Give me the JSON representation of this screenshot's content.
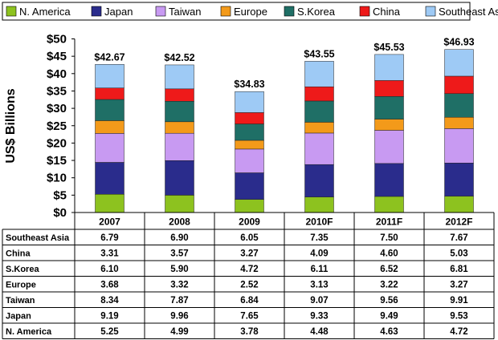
{
  "chart_data": {
    "type": "bar",
    "stacked": true,
    "ylabel": "US$ Billions",
    "ylim": [
      0,
      50
    ],
    "yticks": [
      "$0",
      "$5",
      "$10",
      "$15",
      "$20",
      "$25",
      "$30",
      "$35",
      "$40",
      "$45",
      "$50"
    ],
    "categories": [
      "2007",
      "2008",
      "2009",
      "2010F",
      "2011F",
      "2012F"
    ],
    "totals": [
      "$42.67",
      "$42.52",
      "$34.83",
      "$43.55",
      "$45.53",
      "$46.93"
    ],
    "legend_placement": "top",
    "grid": false,
    "series": [
      {
        "name": "N. America",
        "color": "#8dc21f",
        "values": [
          5.25,
          4.99,
          3.78,
          4.48,
          4.63,
          4.72
        ]
      },
      {
        "name": "Japan",
        "color": "#2a2c8c",
        "values": [
          9.19,
          9.96,
          7.65,
          9.33,
          9.49,
          9.53
        ]
      },
      {
        "name": "Taiwan",
        "color": "#c89af2",
        "values": [
          8.34,
          7.87,
          6.84,
          9.07,
          9.56,
          9.91
        ]
      },
      {
        "name": "Europe",
        "color": "#f39a1a",
        "values": [
          3.68,
          3.32,
          2.52,
          3.13,
          3.22,
          3.27
        ]
      },
      {
        "name": "S.Korea",
        "color": "#1f6f66",
        "values": [
          6.1,
          5.9,
          4.72,
          6.11,
          6.52,
          6.81
        ]
      },
      {
        "name": "China",
        "color": "#ee1a1a",
        "values": [
          3.31,
          3.57,
          3.27,
          4.09,
          4.6,
          5.03
        ]
      },
      {
        "name": "Southeast Asia",
        "color": "#9ecaf5",
        "values": [
          6.79,
          6.9,
          6.05,
          7.35,
          7.5,
          7.67
        ]
      }
    ],
    "table": {
      "row_order": [
        "Southeast Asia",
        "China",
        "S.Korea",
        "Europe",
        "Taiwan",
        "Japan",
        "N. America"
      ],
      "rows": [
        {
          "label": "Southeast Asia",
          "cells": [
            "6.79",
            "6.90",
            "6.05",
            "7.35",
            "7.50",
            "7.67"
          ]
        },
        {
          "label": "China",
          "cells": [
            "3.31",
            "3.57",
            "3.27",
            "4.09",
            "4.60",
            "5.03"
          ]
        },
        {
          "label": "S.Korea",
          "cells": [
            "6.10",
            "5.90",
            "4.72",
            "6.11",
            "6.52",
            "6.81"
          ]
        },
        {
          "label": "Europe",
          "cells": [
            "3.68",
            "3.32",
            "2.52",
            "3.13",
            "3.22",
            "3.27"
          ]
        },
        {
          "label": "Taiwan",
          "cells": [
            "8.34",
            "7.87",
            "6.84",
            "9.07",
            "9.56",
            "9.91"
          ]
        },
        {
          "label": "Japan",
          "cells": [
            "9.19",
            "9.96",
            "7.65",
            "9.33",
            "9.49",
            "9.53"
          ]
        },
        {
          "label": "N. America",
          "cells": [
            "5.25",
            "4.99",
            "3.78",
            "4.48",
            "4.63",
            "4.72"
          ]
        }
      ]
    }
  }
}
